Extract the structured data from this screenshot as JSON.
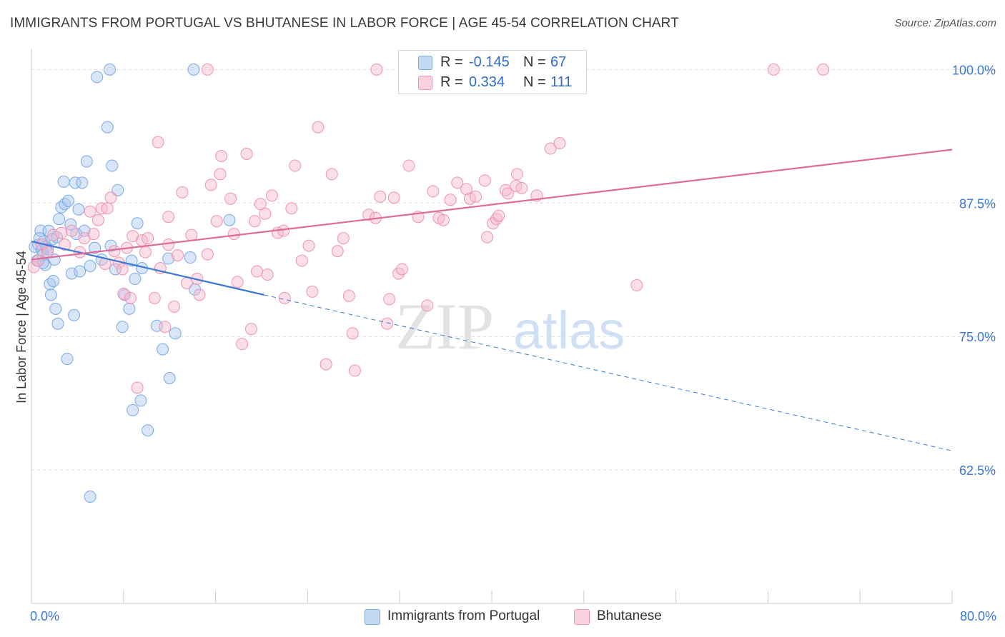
{
  "title": "IMMIGRANTS FROM PORTUGAL VS BHUTANESE IN LABOR FORCE | AGE 45-54 CORRELATION CHART",
  "source": "Source: ZipAtlas.com",
  "watermark": {
    "zip": "ZIP",
    "atlas": "atlas"
  },
  "legend": {
    "series1": {
      "r_label": "R =",
      "r_value": "-0.145",
      "n_label": "N =",
      "n_value": "67",
      "color": "#a9c8ef"
    },
    "series2": {
      "r_label": "R =",
      "r_value": "0.334",
      "n_label": "N =",
      "n_value": "111",
      "color": "#f5b8cc"
    }
  },
  "bottom_legend": {
    "series1": "Immigrants from Portugal",
    "series2": "Bhutanese"
  },
  "chart_data": {
    "type": "scatter",
    "xlabel": "",
    "ylabel": "In Labor Force | Age 45-54",
    "xlim": [
      0,
      80
    ],
    "ylim": [
      50,
      102.5
    ],
    "x_tick_labels": [
      {
        "value": 0,
        "label": "0.0%"
      },
      {
        "value": 80,
        "label": "80.0%"
      }
    ],
    "y_tick_labels": [
      {
        "value": 100,
        "label": "100.0%"
      },
      {
        "value": 87.5,
        "label": "87.5%"
      },
      {
        "value": 75,
        "label": "75.0%"
      },
      {
        "value": 62.5,
        "label": "62.5%"
      }
    ],
    "x_minor_ticks": [
      0,
      8,
      16,
      24,
      32,
      40,
      48,
      56,
      64,
      72,
      80
    ],
    "grid": true,
    "series": [
      {
        "name": "Immigrants from Portugal",
        "color": "#7aa8e6",
        "fill": "#a9c8ef",
        "line_color": "#3a78d6",
        "trend": {
          "x0": 0,
          "y0": 83.9,
          "x1": 20.2,
          "y1": 78.9,
          "dashed_to_x": 80,
          "dashed_to_y": 64.3
        },
        "points": [
          [
            0.3,
            83.4
          ],
          [
            0.5,
            82.1
          ],
          [
            0.6,
            83.6
          ],
          [
            0.8,
            84.9
          ],
          [
            0.9,
            83.1
          ],
          [
            1.0,
            82.6
          ],
          [
            1.1,
            83.9
          ],
          [
            1.2,
            81.7
          ],
          [
            1.3,
            83.4
          ],
          [
            1.4,
            83.2
          ],
          [
            1.5,
            84.9
          ],
          [
            1.6,
            79.9
          ],
          [
            1.7,
            78.9
          ],
          [
            1.8,
            84.1
          ],
          [
            1.9,
            80.2
          ],
          [
            2.1,
            77.6
          ],
          [
            2.2,
            84.3
          ],
          [
            2.3,
            76.2
          ],
          [
            2.4,
            86.0
          ],
          [
            2.6,
            87.1
          ],
          [
            2.8,
            89.5
          ],
          [
            2.9,
            87.4
          ],
          [
            3.1,
            72.9
          ],
          [
            3.2,
            87.7
          ],
          [
            3.4,
            85.5
          ],
          [
            3.5,
            80.9
          ],
          [
            3.7,
            77.0
          ],
          [
            3.8,
            89.4
          ],
          [
            3.9,
            84.6
          ],
          [
            4.1,
            86.9
          ],
          [
            4.2,
            81.1
          ],
          [
            4.4,
            89.4
          ],
          [
            4.6,
            84.9
          ],
          [
            4.8,
            91.4
          ],
          [
            5.1,
            81.6
          ],
          [
            5.5,
            83.3
          ],
          [
            5.7,
            99.3
          ],
          [
            6.1,
            82.2
          ],
          [
            6.6,
            94.6
          ],
          [
            6.8,
            100.0
          ],
          [
            6.9,
            83.5
          ],
          [
            7.0,
            91.0
          ],
          [
            7.3,
            81.3
          ],
          [
            7.5,
            88.7
          ],
          [
            7.9,
            75.9
          ],
          [
            8.1,
            78.9
          ],
          [
            8.5,
            77.6
          ],
          [
            8.7,
            82.1
          ],
          [
            9.0,
            80.4
          ],
          [
            9.2,
            85.6
          ],
          [
            9.5,
            69.0
          ],
          [
            9.6,
            81.4
          ],
          [
            10.1,
            66.2
          ],
          [
            10.9,
            76.0
          ],
          [
            11.4,
            73.8
          ],
          [
            11.9,
            82.3
          ],
          [
            12.0,
            71.1
          ],
          [
            12.5,
            75.3
          ],
          [
            13.8,
            82.4
          ],
          [
            14.2,
            79.4
          ],
          [
            14.1,
            100.0
          ],
          [
            17.2,
            85.9
          ],
          [
            8.8,
            68.1
          ],
          [
            5.1,
            60.0
          ],
          [
            2.0,
            82.2
          ],
          [
            1.0,
            81.9
          ],
          [
            0.7,
            84.2
          ]
        ]
      },
      {
        "name": "Bhutanese",
        "color": "#ee93b1",
        "fill": "#f5b8cc",
        "line_color": "#e06a96",
        "trend": {
          "x0": 0,
          "y0": 82.2,
          "x1": 80,
          "y1": 92.5
        },
        "points": [
          [
            0.2,
            81.5
          ],
          [
            0.6,
            82.1
          ],
          [
            0.9,
            83.6
          ],
          [
            1.4,
            82.9
          ],
          [
            1.9,
            84.5
          ],
          [
            2.6,
            84.7
          ],
          [
            2.9,
            83.6
          ],
          [
            3.5,
            84.9
          ],
          [
            4.2,
            82.9
          ],
          [
            4.6,
            84.2
          ],
          [
            5.1,
            86.7
          ],
          [
            5.4,
            84.6
          ],
          [
            5.8,
            85.9
          ],
          [
            6.1,
            87.0
          ],
          [
            6.4,
            81.8
          ],
          [
            6.6,
            87.0
          ],
          [
            6.9,
            88.0
          ],
          [
            7.2,
            83.0
          ],
          [
            7.6,
            81.9
          ],
          [
            7.9,
            81.3
          ],
          [
            8.0,
            79.0
          ],
          [
            8.3,
            83.3
          ],
          [
            8.6,
            78.6
          ],
          [
            8.8,
            84.4
          ],
          [
            9.2,
            70.2
          ],
          [
            9.6,
            84.0
          ],
          [
            9.9,
            82.9
          ],
          [
            10.1,
            84.2
          ],
          [
            10.7,
            78.6
          ],
          [
            11.0,
            93.2
          ],
          [
            11.2,
            81.4
          ],
          [
            11.9,
            86.2
          ],
          [
            11.9,
            83.6
          ],
          [
            12.4,
            77.8
          ],
          [
            12.7,
            82.6
          ],
          [
            13.1,
            88.5
          ],
          [
            13.5,
            80.0
          ],
          [
            13.9,
            84.5
          ],
          [
            14.4,
            80.4
          ],
          [
            14.6,
            78.9
          ],
          [
            15.3,
            82.7
          ],
          [
            15.6,
            89.2
          ],
          [
            16.1,
            85.8
          ],
          [
            16.4,
            90.2
          ],
          [
            16.5,
            91.9
          ],
          [
            17.3,
            87.9
          ],
          [
            17.6,
            84.6
          ],
          [
            17.9,
            80.1
          ],
          [
            18.3,
            74.3
          ],
          [
            18.7,
            92.1
          ],
          [
            19.1,
            75.7
          ],
          [
            19.4,
            85.8
          ],
          [
            19.6,
            81.1
          ],
          [
            19.9,
            87.4
          ],
          [
            20.3,
            86.5
          ],
          [
            20.5,
            80.8
          ],
          [
            20.9,
            88.2
          ],
          [
            21.4,
            84.7
          ],
          [
            21.9,
            84.9
          ],
          [
            22.0,
            78.6
          ],
          [
            22.6,
            87.0
          ],
          [
            22.9,
            91.0
          ],
          [
            23.5,
            82.1
          ],
          [
            24.1,
            83.5
          ],
          [
            24.4,
            79.2
          ],
          [
            24.9,
            94.6
          ],
          [
            25.6,
            72.4
          ],
          [
            26.1,
            90.2
          ],
          [
            26.6,
            83.0
          ],
          [
            27.1,
            84.2
          ],
          [
            27.6,
            78.8
          ],
          [
            27.9,
            75.3
          ],
          [
            28.1,
            71.8
          ],
          [
            29.3,
            86.4
          ],
          [
            29.9,
            86.1
          ],
          [
            30.3,
            88.1
          ],
          [
            30.9,
            76.2
          ],
          [
            31.1,
            78.5
          ],
          [
            31.5,
            88.0
          ],
          [
            31.9,
            80.9
          ],
          [
            32.2,
            81.3
          ],
          [
            32.8,
            91.0
          ],
          [
            33.6,
            86.2
          ],
          [
            34.4,
            77.9
          ],
          [
            34.9,
            88.6
          ],
          [
            35.4,
            86.1
          ],
          [
            35.8,
            85.9
          ],
          [
            36.4,
            87.8
          ],
          [
            37.0,
            89.4
          ],
          [
            37.8,
            88.8
          ],
          [
            38.1,
            87.9
          ],
          [
            38.6,
            88.1
          ],
          [
            39.4,
            89.6
          ],
          [
            39.6,
            84.3
          ],
          [
            40.1,
            85.6
          ],
          [
            40.4,
            86.0
          ],
          [
            40.6,
            86.3
          ],
          [
            41.2,
            88.7
          ],
          [
            41.4,
            88.4
          ],
          [
            42.1,
            89.1
          ],
          [
            42.2,
            90.2
          ],
          [
            42.6,
            88.9
          ],
          [
            43.9,
            88.2
          ],
          [
            45.1,
            92.6
          ],
          [
            45.9,
            93.1
          ],
          [
            52.6,
            79.8
          ],
          [
            11.6,
            75.9
          ],
          [
            30.0,
            100.0
          ],
          [
            15.3,
            100.0
          ],
          [
            64.5,
            100.0
          ],
          [
            68.8,
            100.0
          ]
        ]
      }
    ]
  }
}
